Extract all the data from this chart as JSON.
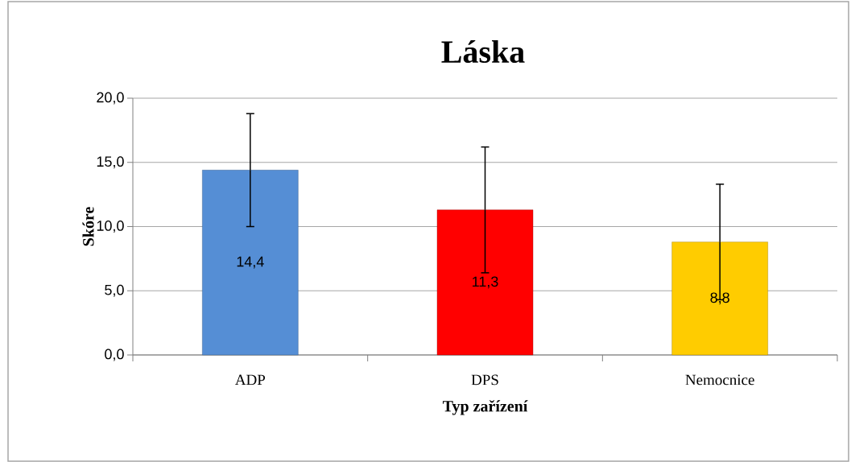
{
  "chart_data": {
    "type": "bar",
    "title": "Láska",
    "xlabel": "Typ zařízení",
    "ylabel": "Skóre",
    "categories": [
      "ADP",
      "DPS",
      "Nemocnice"
    ],
    "values": [
      14.4,
      11.3,
      8.8
    ],
    "colors": [
      "#558ed5",
      "#ff0000",
      "#ffcc00"
    ],
    "errors": [
      4.4,
      4.9,
      4.5
    ],
    "value_labels": [
      "14,4",
      "11,3",
      "8,8"
    ],
    "ylim": [
      0,
      20
    ],
    "yticks": [
      {
        "value": 0,
        "label": "0,0"
      },
      {
        "value": 5,
        "label": "5,0"
      },
      {
        "value": 10,
        "label": "10,0"
      },
      {
        "value": 15,
        "label": "15,0"
      },
      {
        "value": 20,
        "label": "20,0"
      }
    ],
    "grid": "y"
  }
}
